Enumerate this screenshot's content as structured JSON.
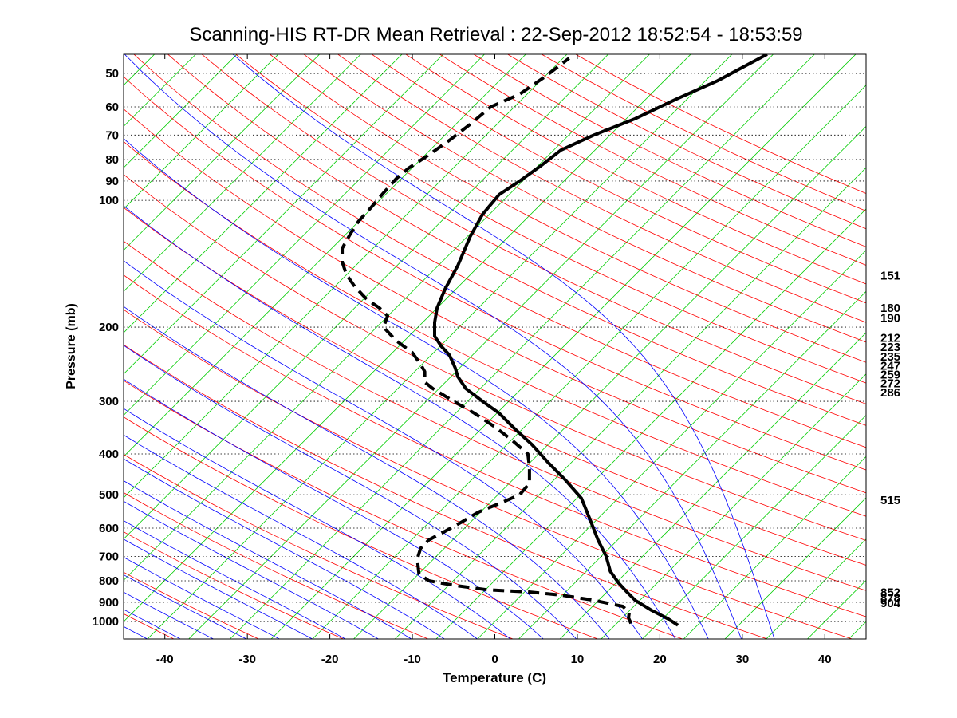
{
  "chart_data": {
    "type": "line",
    "title": "Scanning-HIS RT-DR Mean Retrieval : 22-Sep-2012 18:52:54 - 18:53:59",
    "xlabel": "Temperature (C)",
    "ylabel": "Pressure (mb)",
    "xlim": [
      -45,
      45
    ],
    "ylim": [
      1100,
      45
    ],
    "y_scale": "log",
    "x_ticks": [
      -40,
      -30,
      -20,
      -10,
      0,
      10,
      20,
      30,
      40
    ],
    "y_ticks": [
      50,
      60,
      70,
      80,
      90,
      100,
      200,
      300,
      400,
      500,
      600,
      700,
      800,
      900,
      1000
    ],
    "grid": "horizontal dotted at y ticks",
    "right_labels": [
      {
        "p": 151,
        "label": "151"
      },
      {
        "p": 180,
        "label": "180"
      },
      {
        "p": 190,
        "label": "190"
      },
      {
        "p": 212,
        "label": "212"
      },
      {
        "p": 223,
        "label": "223"
      },
      {
        "p": 235,
        "label": "235"
      },
      {
        "p": 247,
        "label": "247"
      },
      {
        "p": 259,
        "label": "259"
      },
      {
        "p": 272,
        "label": "272"
      },
      {
        "p": 286,
        "label": "286"
      },
      {
        "p": 515,
        "label": "515"
      },
      {
        "p": 852,
        "label": "852"
      },
      {
        "p": 878,
        "label": "878"
      },
      {
        "p": 904,
        "label": "904"
      }
    ],
    "series": [
      {
        "style": "solid",
        "color": "#000000",
        "points": [
          [
            22.2,
            1020
          ],
          [
            21,
            985
          ],
          [
            19,
            940
          ],
          [
            17,
            890
          ],
          [
            16,
            850
          ],
          [
            15,
            810
          ],
          [
            14,
            760
          ],
          [
            13.5,
            700
          ],
          [
            12.5,
            640
          ],
          [
            11.5,
            570
          ],
          [
            10.5,
            510
          ],
          [
            8.5,
            460
          ],
          [
            6.5,
            420
          ],
          [
            4.5,
            380
          ],
          [
            2.5,
            350
          ],
          [
            0.5,
            320
          ],
          [
            -1.5,
            300
          ],
          [
            -3.5,
            280
          ],
          [
            -4.5,
            262
          ],
          [
            -4.8,
            250
          ],
          [
            -5.5,
            233
          ],
          [
            -6.5,
            222
          ],
          [
            -7.3,
            210
          ],
          [
            -7.3,
            195
          ],
          [
            -7,
            180
          ],
          [
            -6,
            162
          ],
          [
            -4.5,
            143
          ],
          [
            -3,
            122
          ],
          [
            -1.5,
            108
          ],
          [
            0.5,
            97
          ],
          [
            3,
            90
          ],
          [
            5.5,
            83
          ],
          [
            8,
            76
          ],
          [
            12,
            70
          ],
          [
            17,
            64
          ],
          [
            22,
            57.5
          ],
          [
            27,
            52
          ],
          [
            33,
            45
          ]
        ]
      },
      {
        "style": "dashed",
        "color": "#000000",
        "points": [
          [
            16.5,
            1010
          ],
          [
            16.2,
            980
          ],
          [
            16.3,
            950
          ],
          [
            15.5,
            920
          ],
          [
            12,
            890
          ],
          [
            8,
            865
          ],
          [
            4,
            850
          ],
          [
            -1,
            840
          ],
          [
            -5,
            820
          ],
          [
            -8,
            800
          ],
          [
            -9.2,
            770
          ],
          [
            -9.3,
            740
          ],
          [
            -9.4,
            710
          ],
          [
            -9,
            670
          ],
          [
            -8,
            640
          ],
          [
            -6,
            610
          ],
          [
            -4,
            580
          ],
          [
            -2,
            550
          ],
          [
            1,
            520
          ],
          [
            3,
            500
          ],
          [
            4.2,
            470
          ],
          [
            4.2,
            430
          ],
          [
            4,
            400
          ],
          [
            2,
            370
          ],
          [
            0,
            345
          ],
          [
            -2.5,
            320
          ],
          [
            -5,
            300
          ],
          [
            -7.5,
            280
          ],
          [
            -8.5,
            270
          ],
          [
            -8.5,
            255
          ],
          [
            -9,
            245
          ],
          [
            -10,
            230
          ],
          [
            -12,
            215
          ],
          [
            -13.5,
            200
          ],
          [
            -13,
            188
          ],
          [
            -14,
            180
          ],
          [
            -15.5,
            172
          ],
          [
            -17,
            160
          ],
          [
            -18,
            150
          ],
          [
            -18.5,
            140
          ],
          [
            -18.5,
            130
          ],
          [
            -17.5,
            120
          ],
          [
            -16.5,
            112
          ],
          [
            -15,
            104
          ],
          [
            -13.5,
            96
          ],
          [
            -12,
            89
          ],
          [
            -10.5,
            84
          ],
          [
            -8,
            78
          ],
          [
            -5.5,
            72
          ],
          [
            -3,
            66
          ],
          [
            -0.5,
            60
          ],
          [
            3,
            56
          ],
          [
            6,
            51
          ],
          [
            9,
            46
          ]
        ]
      }
    ],
    "background_lines": [
      {
        "name": "isotherms (skewed)",
        "color": "#00cc00"
      },
      {
        "name": "dry adiabats",
        "color": "#ff0000"
      },
      {
        "name": "moist adiabats",
        "color": "#0000ff"
      }
    ]
  }
}
